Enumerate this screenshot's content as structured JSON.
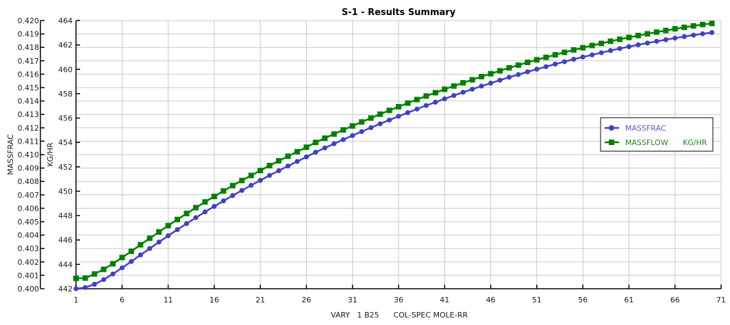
{
  "chart_data": {
    "type": "line",
    "title": "S-1 - Results Summary",
    "xlabel": "VARY   1 B25      COL-SPEC MOLE-RR",
    "xlim": [
      1,
      71
    ],
    "xticks": [
      1,
      6,
      11,
      16,
      21,
      26,
      31,
      36,
      41,
      46,
      51,
      56,
      61,
      66,
      71
    ],
    "grid": true,
    "legend_position": "right",
    "axes": [
      {
        "id": "left",
        "label": "MASSFRAC",
        "ylim": [
          0.4,
          0.42
        ],
        "ticks": [
          "0.400",
          "0.401",
          "0.402",
          "0.403",
          "0.404",
          "0.405",
          "0.406",
          "0.407",
          "0.408",
          "0.409",
          "0.410",
          "0.411",
          "0.412",
          "0.413",
          "0.414",
          "0.415",
          "0.416",
          "0.417",
          "0.418",
          "0.419",
          "0.420"
        ]
      },
      {
        "id": "right",
        "label": "KG/HR",
        "ylim": [
          442,
          464
        ],
        "ticks": [
          "442",
          "444",
          "446",
          "448",
          "450",
          "452",
          "454",
          "456",
          "458",
          "460",
          "462",
          "464"
        ]
      }
    ],
    "x": [
      1,
      2,
      3,
      4,
      5,
      6,
      7,
      8,
      9,
      10,
      11,
      12,
      13,
      14,
      15,
      16,
      17,
      18,
      19,
      20,
      21,
      22,
      23,
      24,
      25,
      26,
      27,
      28,
      29,
      30,
      31,
      32,
      33,
      34,
      35,
      36,
      37,
      38,
      39,
      40,
      41,
      42,
      43,
      44,
      45,
      46,
      47,
      48,
      49,
      50,
      51,
      52,
      53,
      54,
      55,
      56,
      57,
      58,
      59,
      60,
      61,
      62,
      63,
      64,
      65,
      66,
      67,
      68,
      69,
      70
    ],
    "series": [
      {
        "name": "MASSFRAC",
        "legend_label": "MASSFRAC",
        "unit": "",
        "axis": "left",
        "color": "#4040c8",
        "marker": "circle",
        "values": [
          0.4,
          0.40009,
          0.40033,
          0.40068,
          0.4011,
          0.40156,
          0.40203,
          0.40252,
          0.403,
          0.40348,
          0.40395,
          0.40441,
          0.40486,
          0.4053,
          0.40573,
          0.40614,
          0.40655,
          0.40695,
          0.40733,
          0.40771,
          0.40808,
          0.40845,
          0.4088,
          0.40915,
          0.40949,
          0.40983,
          0.41018,
          0.4105,
          0.41081,
          0.41112,
          0.41142,
          0.41172,
          0.41201,
          0.4123,
          0.41258,
          0.41286,
          0.41313,
          0.4134,
          0.41366,
          0.41391,
          0.41416,
          0.41441,
          0.41465,
          0.41488,
          0.41511,
          0.41533,
          0.41555,
          0.41577,
          0.41597,
          0.41618,
          0.41637,
          0.41656,
          0.41675,
          0.41693,
          0.41711,
          0.41728,
          0.41744,
          0.4176,
          0.41776,
          0.41791,
          0.41805,
          0.41819,
          0.41832,
          0.41845,
          0.41857,
          0.41869,
          0.4188,
          0.41891,
          0.41901,
          0.4191
        ]
      },
      {
        "name": "MASSFLOW",
        "legend_label": "MASSFLOW",
        "unit": "KG/HR",
        "axis": "right",
        "color": "#008000",
        "marker": "square",
        "values": [
          442.85,
          442.87,
          443.21,
          443.59,
          444.05,
          444.56,
          445.07,
          445.61,
          446.14,
          446.66,
          447.18,
          447.68,
          448.17,
          448.65,
          449.12,
          449.57,
          450.02,
          450.46,
          450.88,
          451.29,
          451.7,
          452.1,
          452.49,
          452.87,
          453.24,
          453.61,
          454.0,
          454.35,
          454.69,
          455.03,
          455.35,
          455.68,
          456.0,
          456.32,
          456.63,
          456.93,
          457.23,
          457.52,
          457.81,
          458.08,
          458.36,
          458.63,
          458.89,
          459.14,
          459.4,
          459.64,
          459.88,
          460.12,
          460.34,
          460.57,
          460.78,
          460.98,
          461.19,
          461.39,
          461.59,
          461.77,
          461.95,
          462.12,
          462.3,
          462.46,
          462.61,
          462.77,
          462.91,
          463.05,
          463.18,
          463.32,
          463.44,
          463.56,
          463.67,
          463.76
        ]
      }
    ]
  }
}
